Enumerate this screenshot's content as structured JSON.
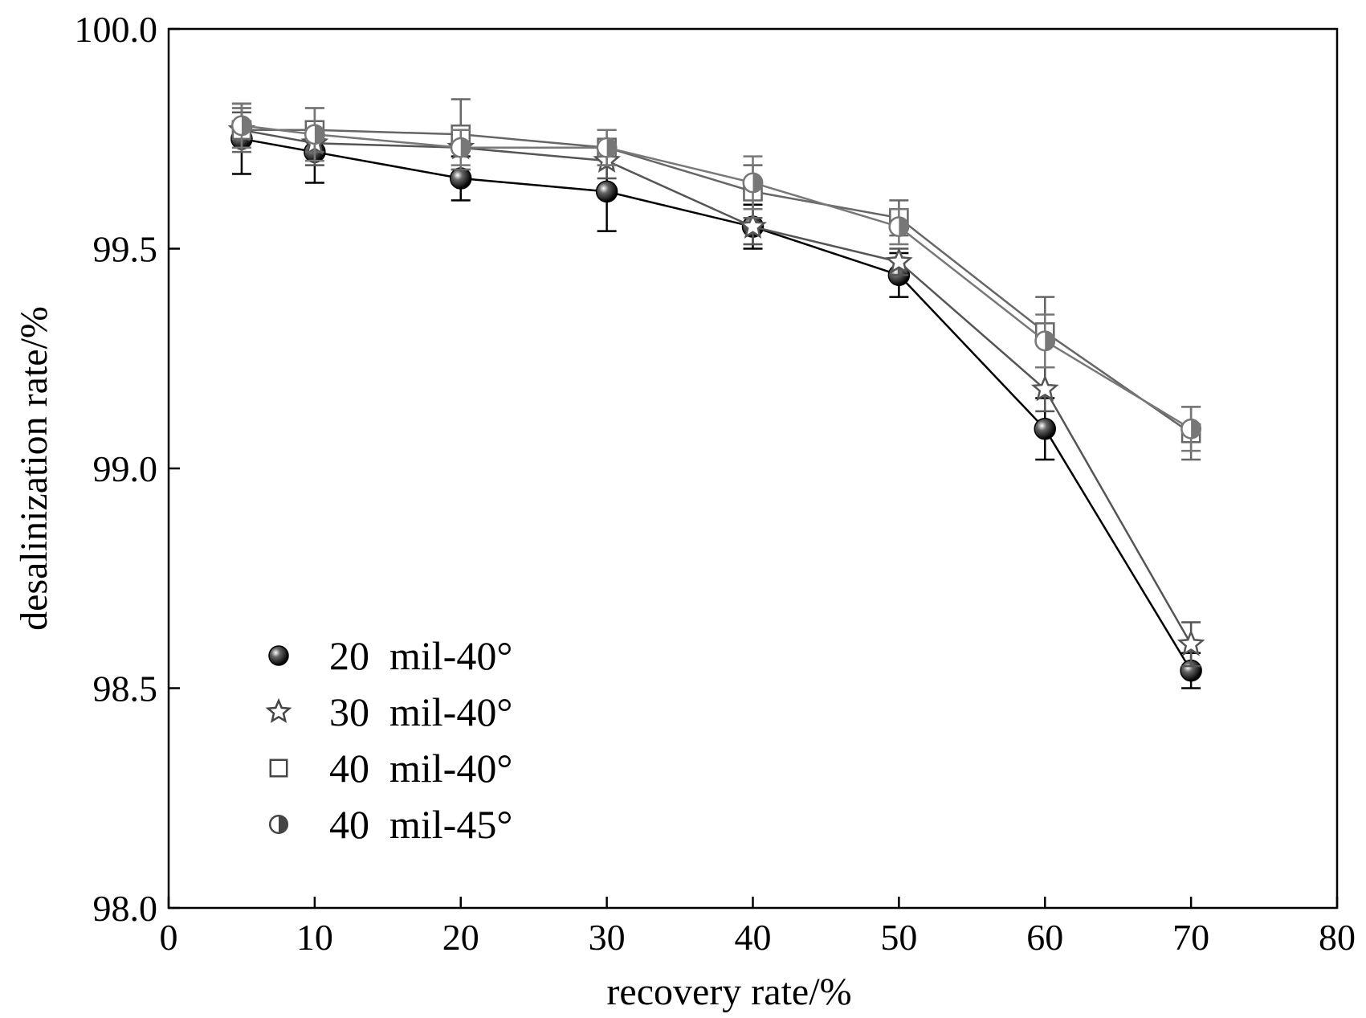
{
  "chart_data": {
    "type": "line",
    "title": "",
    "xlabel": "recovery rate/%",
    "ylabel": "desalinization rate/%",
    "xlim": [
      0,
      80
    ],
    "ylim": [
      98.0,
      100.0
    ],
    "xticks": [
      0,
      10,
      20,
      30,
      40,
      50,
      60,
      70,
      80
    ],
    "xtick_labels": [
      "0",
      "10",
      "20",
      "30",
      "40",
      "50",
      "60",
      "70",
      "80"
    ],
    "yticks": [
      98.0,
      98.5,
      99.0,
      99.5,
      100.0
    ],
    "ytick_labels": [
      "98.0",
      "98.5",
      "99.0",
      "99.5",
      "100.0"
    ],
    "grid": false,
    "legend_position": "bottom-left",
    "x": [
      5,
      10,
      20,
      30,
      40,
      50,
      60,
      70
    ],
    "series": [
      {
        "name": "20  mil-40°",
        "marker": "filled-sphere",
        "color": "#000000",
        "values": [
          99.75,
          99.72,
          99.66,
          99.63,
          99.55,
          99.44,
          99.09,
          98.54
        ],
        "errors": [
          0.08,
          0.07,
          0.05,
          0.09,
          0.05,
          0.05,
          0.07,
          0.04
        ]
      },
      {
        "name": "30  mil-40°",
        "marker": "open-star",
        "color": "#555555",
        "values": [
          99.77,
          99.74,
          99.73,
          99.7,
          99.55,
          99.47,
          99.18,
          98.6
        ],
        "errors": [
          0.04,
          0.05,
          0.05,
          0.04,
          0.04,
          0.03,
          0.05,
          0.05
        ]
      },
      {
        "name": "40  mil-40°",
        "marker": "open-square",
        "color": "#666666",
        "values": [
          99.77,
          99.77,
          99.76,
          99.73,
          99.63,
          99.57,
          99.31,
          99.08
        ],
        "errors": [
          0.05,
          0.05,
          0.08,
          0.04,
          0.06,
          0.04,
          0.08,
          0.06
        ]
      },
      {
        "name": "40  mil-45°",
        "marker": "half-filled-circle",
        "color": "#777777",
        "values": [
          99.78,
          99.76,
          99.73,
          99.73,
          99.65,
          99.55,
          99.29,
          99.09
        ],
        "errors": [
          0.05,
          0.06,
          0.04,
          0.04,
          0.06,
          0.04,
          0.06,
          0.05
        ]
      }
    ]
  }
}
